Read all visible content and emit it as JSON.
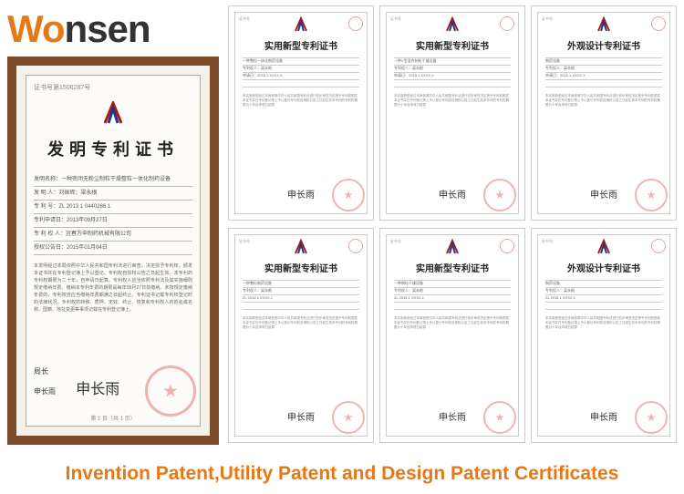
{
  "logo": {
    "part1": "W",
    "part2": "o",
    "rest": "nsen"
  },
  "caption": "Invention Patent,Utility Patent and  Design Patent Certificates",
  "main_cert": {
    "number": "证书号第1506287号",
    "title": "发明专利证书",
    "rows": {
      "name": "发明名称：一种密闭无粉尘制粒干燥整粒一体化制药设备",
      "inventor": "发 明 人：刘振辉；梁永根",
      "patent_no": "专 利 号：ZL 2013 1 0440286.1",
      "apply_date": "专利申请日：2013年09月27日",
      "holder": "专 利 权 人：宜春万申制药机械有限公司",
      "grant_date": "授权公告日：2015年01月04日"
    },
    "para": "本发明经过本局依照中华人民共和国专利法进行审查，决定授予专利权，颁发本证书并在专利登记簿上予以登记。专利权自授权公告之日起生效。本专利的专利权期限为二十年，自申请日起算。专利权人应当依照专利法及其实施细则规定缴纳年费。缴纳本专利年费的期限是每年09月27日前缴纳。未按规定缴纳年费的，专利权自应当缴纳年费期满之日起终止。专利证书记载专利权登记时的法律状况。专利权的转移、质押、无效、终止、恢复和专利权人的姓名或名称、国籍、地址变更等事项记载在专利登记簿上。",
    "sig_label": "局长",
    "sig_sub": "申长雨",
    "signature": "申长雨",
    "foot": "第 1 页（共 1 页）"
  },
  "small_certs": [
    {
      "title": "实用新型专利证书",
      "sub": "一种整粒一体化制药设备",
      "holder": "专利权人：梁永根",
      "date": "申请日：2015.1.XXXX.X"
    },
    {
      "title": "实用新型专利证书",
      "sub": "一种V型混合制粒干燥设备",
      "holder": "专利权人：梁永根",
      "date": "申请日：2015.1.XXXX.X"
    },
    {
      "title": "外观设计专利证书",
      "sub": "制药设备",
      "holder": "专利权人：梁永根",
      "date": "申请日：2015.1.XXXX.X"
    },
    {
      "title": "实用新型专利证书",
      "sub": "一种整粒制药设备",
      "holder": "专利权人：梁永根",
      "date": "ZL 2015 1 XXXX.1"
    },
    {
      "title": "实用新型专利证书",
      "sub": "一种制粒干燥设备",
      "holder": "专利权人：梁永根",
      "date": "ZL 2015 1 XXXX.1"
    },
    {
      "title": "外观设计专利证书",
      "sub": "制药设备",
      "holder": "专利权人：梁永根",
      "date": "ZL 2015 1 XXXX.1"
    }
  ],
  "small_sig": "申长雨"
}
